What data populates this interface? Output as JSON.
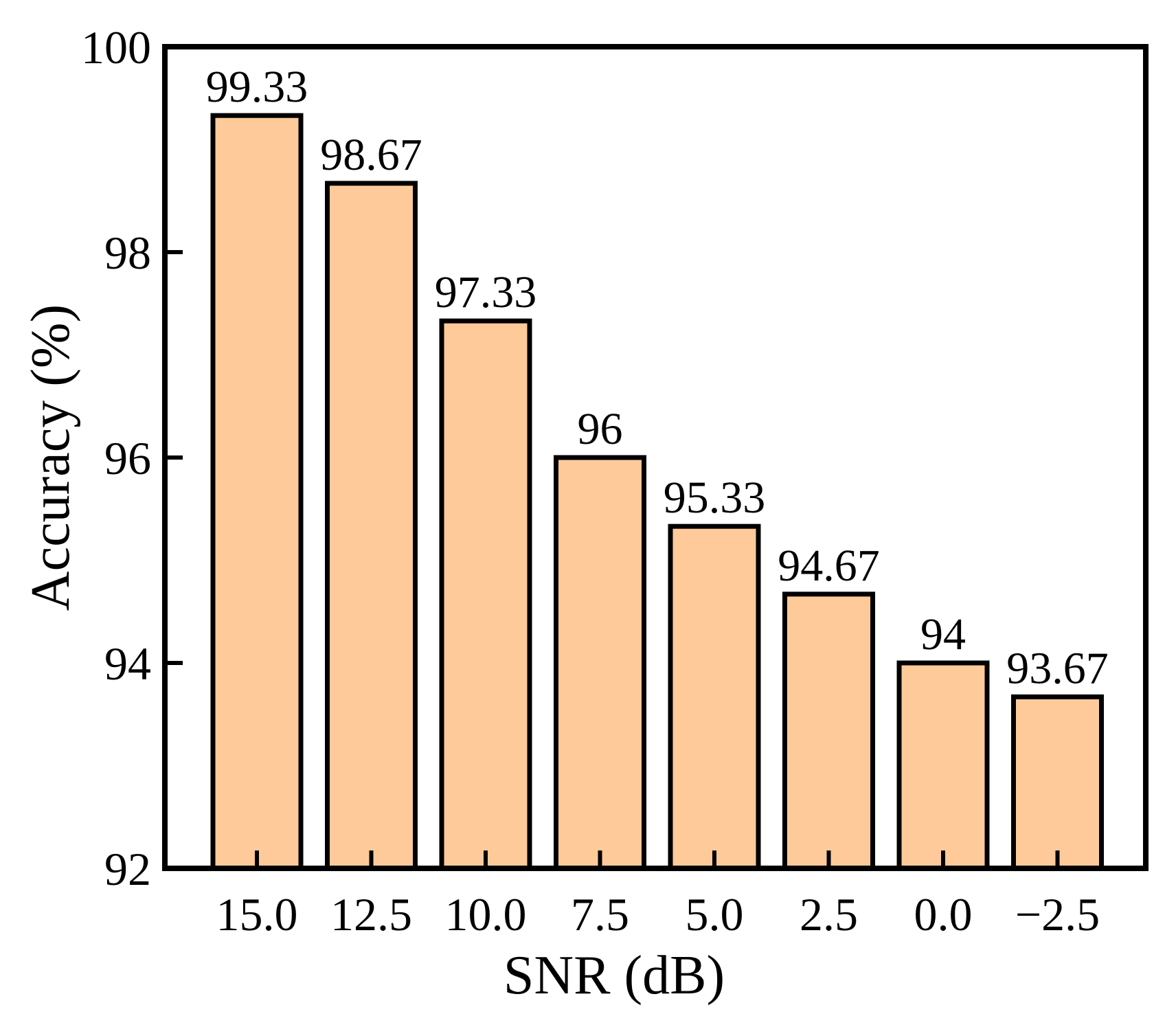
{
  "chart_data": {
    "type": "bar",
    "title": "",
    "xlabel": "SNR (dB)",
    "ylabel": "Accuracy (%)",
    "categories": [
      "15.0",
      "12.5",
      "10.0",
      "7.5",
      "5.0",
      "2.5",
      "0.0",
      "−2.5"
    ],
    "values": [
      99.33,
      98.67,
      97.33,
      96,
      95.33,
      94.67,
      94,
      93.67
    ],
    "value_labels": [
      "99.33",
      "98.67",
      "97.33",
      "96",
      "95.33",
      "94.67",
      "94",
      "93.67"
    ],
    "ylim": [
      92,
      100
    ],
    "yticks": [
      92,
      94,
      96,
      98,
      100
    ],
    "grid": false,
    "legend": "none",
    "colors": {
      "bar_fill": "#FFCA9A",
      "bar_edge": "#000000",
      "axis": "#000000"
    }
  }
}
